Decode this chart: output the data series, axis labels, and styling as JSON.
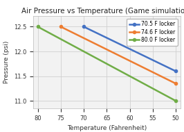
{
  "title": "Air Pressure vs Temperature (Game simulation)",
  "xlabel": "Temperature (Fahrenheit)",
  "ylabel": "Pressure (psi)",
  "series": [
    {
      "label": "70.5 F locker",
      "color": "#4472c4",
      "x": [
        70,
        50
      ],
      "y": [
        12.5,
        11.6
      ]
    },
    {
      "label": "74.6 F locker",
      "color": "#ed7d31",
      "x": [
        75,
        50
      ],
      "y": [
        12.5,
        11.35
      ]
    },
    {
      "label": "80.0 F locker",
      "color": "#70ad47",
      "x": [
        80,
        50
      ],
      "y": [
        12.5,
        11.0
      ]
    }
  ],
  "xlim": [
    81,
    49
  ],
  "xticks": [
    80,
    75,
    70,
    65,
    60,
    55,
    50
  ],
  "ylim": [
    10.85,
    12.72
  ],
  "yticks": [
    11.0,
    11.5,
    12.0,
    12.5
  ],
  "marker": "o",
  "markersize": 3,
  "linewidth": 1.8,
  "grid": true,
  "grid_color": "#d0d0d0",
  "plot_bg": "#f2f2f2",
  "fig_bg": "#ffffff",
  "title_fontsize": 7.5,
  "label_fontsize": 6.5,
  "tick_fontsize": 6,
  "legend_fontsize": 5.5
}
